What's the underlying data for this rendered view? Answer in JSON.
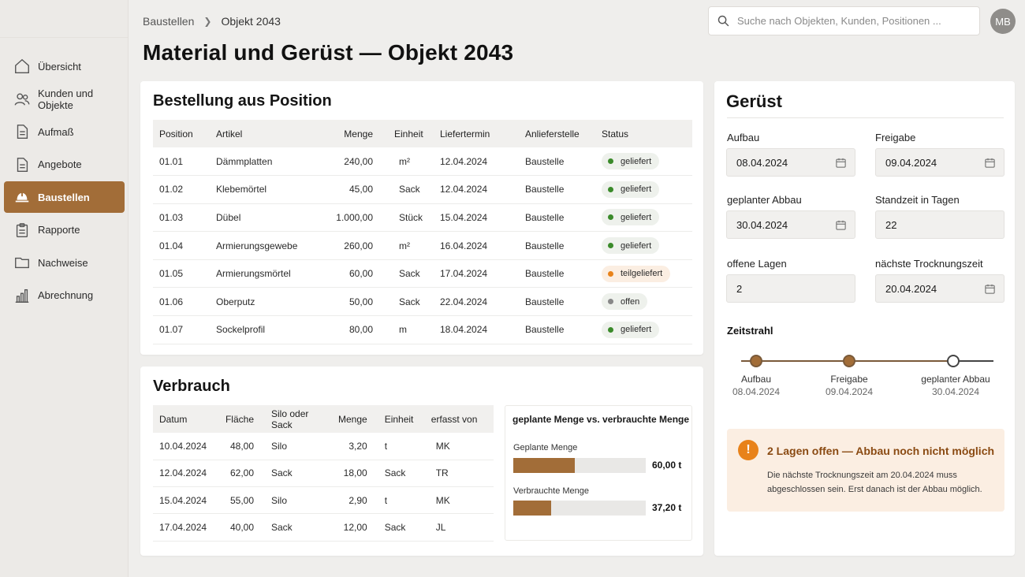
{
  "sidebar": {
    "items": [
      {
        "label": "Übersicht",
        "icon": "home-icon"
      },
      {
        "label": "Kunden und Objekte",
        "icon": "users-icon"
      },
      {
        "label": "Aufmaß",
        "icon": "document-icon"
      },
      {
        "label": "Angebote",
        "icon": "document-icon"
      },
      {
        "label": "Baustellen",
        "icon": "hard-hat-icon",
        "active": true
      },
      {
        "label": "Rapporte",
        "icon": "clipboard-icon"
      },
      {
        "label": "Nachweise",
        "icon": "folder-icon"
      },
      {
        "label": "Abrechnung",
        "icon": "bar-chart-icon"
      }
    ]
  },
  "header": {
    "breadcrumb": [
      "Baustellen",
      "Objekt 2043"
    ],
    "title": "Material und Gerüst — Objekt 2043",
    "search_placeholder": "Suche nach Objekten, Kunden, Positionen ...",
    "avatar": "MB"
  },
  "order": {
    "title": "Bestellung aus Position",
    "columns": [
      "Position",
      "Artikel",
      "Menge",
      "Einheit",
      "Liefertermin",
      "Anlieferstelle",
      "Status"
    ],
    "rows": [
      {
        "pos": "01.01",
        "artikel": "Dämmplatten",
        "menge": "240,00",
        "einheit": "m²",
        "termin": "12.04.2024",
        "stelle": "Baustelle",
        "status": "geliefert",
        "status_color": "#3a8a2a"
      },
      {
        "pos": "01.02",
        "artikel": "Klebemörtel",
        "menge": "45,00",
        "einheit": "Sack",
        "termin": "12.04.2024",
        "stelle": "Baustelle",
        "status": "geliefert",
        "status_color": "#3a8a2a"
      },
      {
        "pos": "01.03",
        "artikel": "Dübel",
        "menge": "1.000,00",
        "einheit": "Stück",
        "termin": "15.04.2024",
        "stelle": "Baustelle",
        "status": "geliefert",
        "status_color": "#3a8a2a"
      },
      {
        "pos": "01.04",
        "artikel": "Armierungsgewebe",
        "menge": "260,00",
        "einheit": "m²",
        "termin": "16.04.2024",
        "stelle": "Baustelle",
        "status": "geliefert",
        "status_color": "#3a8a2a"
      },
      {
        "pos": "01.05",
        "artikel": "Armierungsmörtel",
        "menge": "60,00",
        "einheit": "Sack",
        "termin": "17.04.2024",
        "stelle": "Baustelle",
        "status": "teilgeliefert",
        "status_color": "#e8821a"
      },
      {
        "pos": "01.06",
        "artikel": "Oberputz",
        "menge": "50,00",
        "einheit": "Sack",
        "termin": "22.04.2024",
        "stelle": "Baustelle",
        "status": "offen",
        "status_color": "#888888"
      },
      {
        "pos": "01.07",
        "artikel": "Sockelprofil",
        "menge": "80,00",
        "einheit": "m",
        "termin": "18.04.2024",
        "stelle": "Baustelle",
        "status": "geliefert",
        "status_color": "#3a8a2a"
      }
    ]
  },
  "consumption": {
    "title": "Verbrauch",
    "columns": [
      "Datum",
      "Fläche",
      "Silo oder Sack",
      "Menge",
      "Einheit",
      "erfasst von"
    ],
    "rows": [
      {
        "datum": "10.04.2024",
        "flaeche": "48,00",
        "silo": "Silo",
        "menge": "3,20",
        "einheit": "t",
        "von": "MK"
      },
      {
        "datum": "12.04.2024",
        "flaeche": "62,00",
        "silo": "Sack",
        "menge": "18,00",
        "einheit": "Sack",
        "von": "TR"
      },
      {
        "datum": "15.04.2024",
        "flaeche": "55,00",
        "silo": "Silo",
        "menge": "2,90",
        "einheit": "t",
        "von": "MK"
      },
      {
        "datum": "17.04.2024",
        "flaeche": "40,00",
        "silo": "Sack",
        "menge": "12,00",
        "einheit": "Sack",
        "von": "JL"
      }
    ]
  },
  "chart_data": {
    "type": "bar",
    "title": "geplante Menge vs. verbrauchte Menge",
    "categories": [
      "Geplante Menge",
      "Verbrauchte Menge"
    ],
    "values": [
      60.0,
      37.2
    ],
    "value_labels": [
      "60,00 t",
      "37,20 t"
    ],
    "xlim": [
      0,
      130
    ],
    "color": "#a26d38"
  },
  "scaffold": {
    "title": "Gerüst",
    "aufbau_label": "Aufbau",
    "aufbau_value": "08.04.2024",
    "freigabe_label": "Freigabe",
    "freigabe_value": "09.04.2024",
    "abbau_label": "geplanter Abbau",
    "abbau_value": "30.04.2024",
    "standzeit_label": "Standzeit in Tagen",
    "standzeit_value": "22",
    "lagen_label": "offene Lagen",
    "lagen_value": "2",
    "trocknung_label": "nächste Trocknungszeit",
    "trocknung_value": "20.04.2024",
    "timeline_title": "Zeitstrahl",
    "timeline": [
      {
        "label": "Aufbau",
        "date": "08.04.2024",
        "done": true
      },
      {
        "label": "Freigabe",
        "date": "09.04.2024",
        "done": true
      },
      {
        "label": "geplanter Abbau",
        "date": "30.04.2024",
        "done": false
      }
    ],
    "alert_title": "2 Lagen offen — Abbau noch nicht möglich",
    "alert_text": "Die nächste Trocknungszeit am 20.04.2024 muss abgeschlossen sein. Erst danach ist der Abbau möglich."
  },
  "colors": {
    "accent": "#a26d38",
    "warning": "#e8821a",
    "success": "#3a8a2a"
  }
}
